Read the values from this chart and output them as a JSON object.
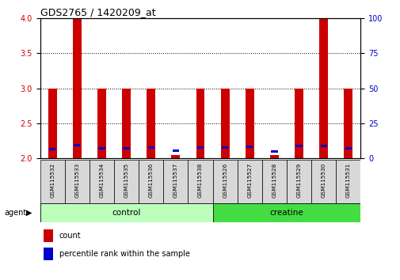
{
  "title": "GDS2765 / 1420209_at",
  "samples": [
    "GSM115532",
    "GSM115533",
    "GSM115534",
    "GSM115535",
    "GSM115536",
    "GSM115537",
    "GSM115538",
    "GSM115526",
    "GSM115527",
    "GSM115528",
    "GSM115529",
    "GSM115530",
    "GSM115531"
  ],
  "red_values": [
    3.0,
    4.0,
    3.0,
    3.0,
    3.0,
    2.05,
    3.0,
    3.0,
    3.0,
    2.05,
    3.0,
    4.0,
    3.0
  ],
  "blue_values": [
    2.13,
    2.19,
    2.14,
    2.14,
    2.15,
    2.11,
    2.15,
    2.15,
    2.16,
    2.1,
    2.18,
    2.18,
    2.14
  ],
  "ylim_left": [
    2.0,
    4.0
  ],
  "ylim_right": [
    0,
    100
  ],
  "yticks_left": [
    2.0,
    2.5,
    3.0,
    3.5,
    4.0
  ],
  "yticks_right": [
    0,
    25,
    50,
    75,
    100
  ],
  "groups": [
    {
      "label": "control",
      "indices": [
        0,
        1,
        2,
        3,
        4,
        5,
        6
      ],
      "color": "#bbffbb"
    },
    {
      "label": "creatine",
      "indices": [
        7,
        8,
        9,
        10,
        11,
        12
      ],
      "color": "#44dd44"
    }
  ],
  "bar_color": "#cc0000",
  "blue_color": "#0000cc",
  "bar_width": 0.35,
  "axis_left_color": "#cc0000",
  "axis_right_color": "#0000cc",
  "agent_label": "agent",
  "legend_count": "count",
  "legend_pct": "percentile rank within the sample"
}
